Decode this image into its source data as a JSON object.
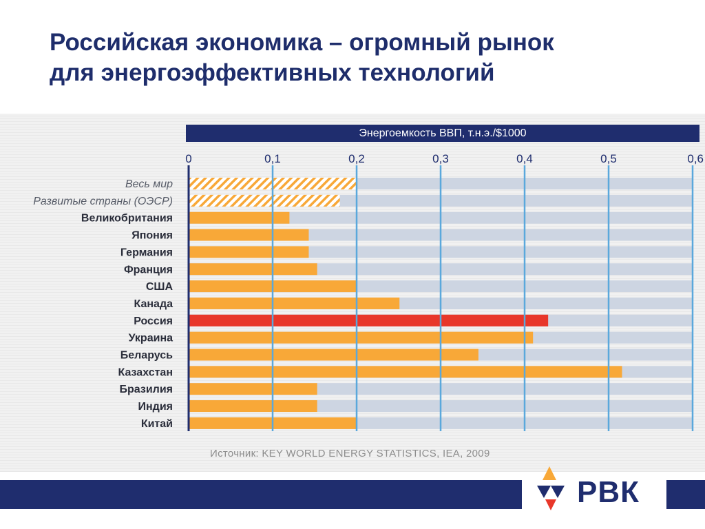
{
  "slide": {
    "title_line1": "Российская экономика – огромный рынок",
    "title_line2": "для энергоэффективных технологий",
    "source": "Источник: KEY WORLD ENERGY STATISTICS, IEA, 2009",
    "logo_text": "РВК"
  },
  "colors": {
    "bar": "#f8a838",
    "highlight_bar": "#e8372a",
    "hatch": "#f8a838",
    "track": "#cdd5e2",
    "gridline": "#5aa8dc",
    "header": "#1f2d6e"
  },
  "chart_data": {
    "type": "bar",
    "orientation": "horizontal",
    "title": "Энергоемкость ВВП, т.н.э./$1000",
    "xlim": [
      0,
      0.6
    ],
    "ticks": [
      "0",
      "0,1",
      "0,2",
      "0,3",
      "0,4",
      "0,5",
      "0,6"
    ],
    "tick_values": [
      0,
      0.1,
      0.2,
      0.3,
      0.4,
      0.5,
      0.6
    ],
    "grid": true,
    "categories": [
      "Весь мир",
      "Развитые страны (ОЭСР)",
      "Великобритания",
      "Япония",
      "Германия",
      "Франция",
      "США",
      "Канада",
      "Россия",
      "Украина",
      "Беларусь",
      "Казахстан",
      "Бразилия",
      "Индия",
      "Китай"
    ],
    "values": [
      0.2,
      0.18,
      0.12,
      0.143,
      0.143,
      0.153,
      0.2,
      0.251,
      0.428,
      0.41,
      0.345,
      0.516,
      0.153,
      0.153,
      0.2
    ],
    "styles": [
      "hatched",
      "hatched",
      "solid",
      "solid",
      "solid",
      "solid",
      "solid",
      "solid",
      "highlight",
      "solid",
      "solid",
      "solid",
      "solid",
      "solid",
      "solid"
    ]
  }
}
